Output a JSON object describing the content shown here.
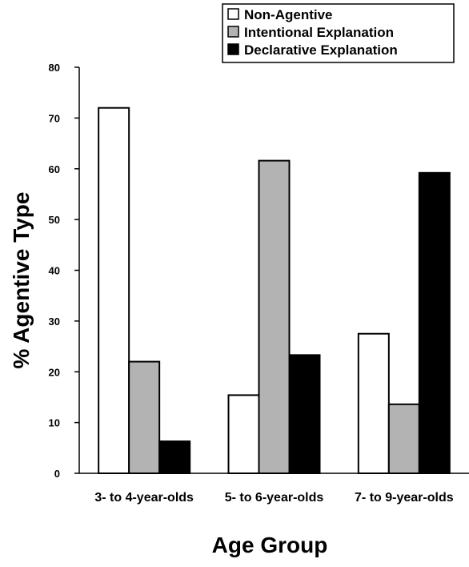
{
  "chart_data": {
    "type": "bar",
    "title": "",
    "xlabel": "Age Group",
    "ylabel": "% Agentive Type",
    "ylim": [
      0,
      80
    ],
    "yticks": [
      0,
      10,
      20,
      30,
      40,
      50,
      60,
      70,
      80
    ],
    "grid": false,
    "legend_position": "top-right",
    "categories": [
      "3- to 4-year-olds",
      "5- to 6-year-olds",
      "7- to 9-year-olds"
    ],
    "series": [
      {
        "name": "Non-Agentive",
        "color": "#ffffff",
        "values": [
          72,
          15.4,
          27.5
        ]
      },
      {
        "name": "Intentional Explanation",
        "color": "#b3b3b3",
        "values": [
          22,
          61.6,
          13.6
        ]
      },
      {
        "name": "Declarative Explanation",
        "color": "#000000",
        "values": [
          6.3,
          23.3,
          59.2
        ]
      }
    ]
  }
}
